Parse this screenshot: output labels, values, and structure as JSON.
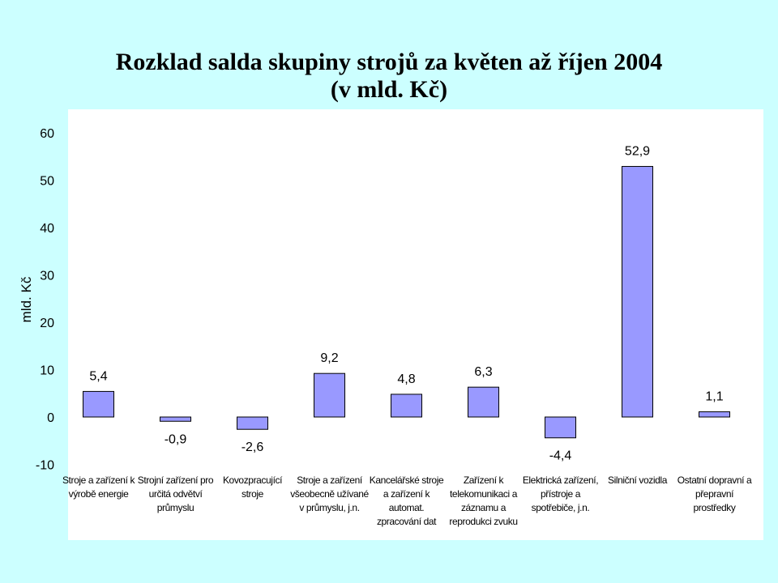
{
  "chart_data": {
    "type": "bar",
    "title": [
      "Rozklad salda skupiny strojů za květen až říjen 2004",
      "(v mld. Kč)"
    ],
    "ylabel": "mld. Kč",
    "xlabel": "",
    "ylim": [
      -10,
      60
    ],
    "yticks": [
      "60",
      "50",
      "40",
      "30",
      "20",
      "10",
      "0",
      "-10"
    ],
    "grid": false,
    "legend": "none",
    "categories": [
      [
        "Stroje a zařízení k",
        "výrobě energie"
      ],
      [
        "Strojní zařízení pro",
        "určitá odvětví",
        "průmyslu"
      ],
      [
        "Kovozpracující",
        "stroje"
      ],
      [
        "Stroje a zařízení",
        "všeobecně užívané",
        "v průmyslu, j.n."
      ],
      [
        "Kancelářské stroje",
        "a zařízení k",
        "automat.",
        "zpracování dat"
      ],
      [
        "Zařízení k",
        "telekomunikaci a",
        "záznamu a",
        "reprodukci zvuku"
      ],
      [
        "Elektrická zařízení,",
        "přístroje a",
        "spotřebiče, j.n."
      ],
      [
        "Silniční vozidla"
      ],
      [
        "Ostatní dopravní a",
        "přepravní",
        "prostředky"
      ]
    ],
    "values": [
      5.4,
      -0.9,
      -2.6,
      9.2,
      4.8,
      6.3,
      -4.4,
      52.9,
      1.1
    ],
    "data_labels": [
      "5,4",
      "-0,9",
      "-2,6",
      "9,2",
      "4,8",
      "6,3",
      "-4,4",
      "52,9",
      "1,1"
    ],
    "colors": {
      "background": "#ccffff",
      "plot_area": "#ffffff",
      "bar_fill": "#9999ff",
      "bar_stroke": "#000000"
    }
  }
}
